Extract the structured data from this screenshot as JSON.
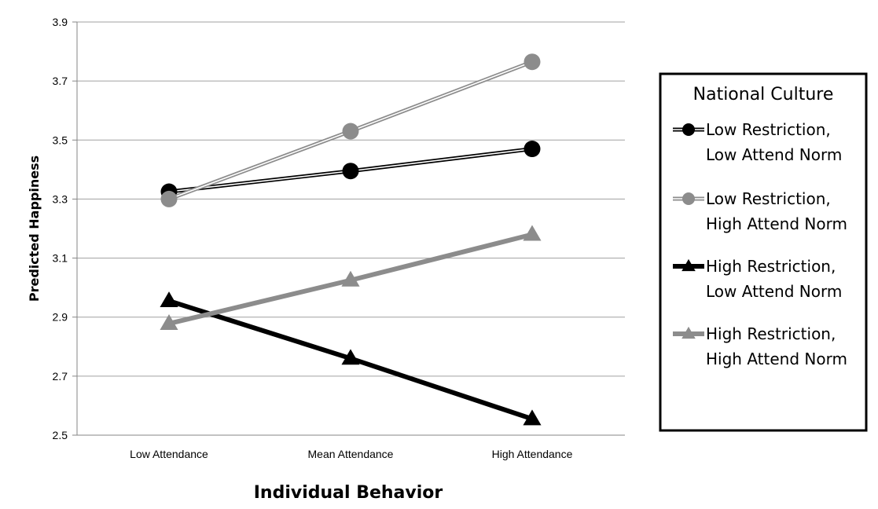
{
  "chart_data": {
    "type": "line",
    "xlabel": "Individual Behavior",
    "ylabel": "Predicted Happiness",
    "categories": [
      "Low Attendance",
      "Mean Attendance",
      "High Attendance"
    ],
    "ylim": [
      2.5,
      3.9
    ],
    "yticks": [
      "2.5",
      "2.7",
      "2.9",
      "3.1",
      "3.3",
      "3.5",
      "3.7",
      "3.9"
    ],
    "grid": true,
    "legend": {
      "title": "National Culture",
      "placement": "right"
    },
    "series": [
      {
        "key": "low-restriction-low-norm",
        "label_lines": [
          "Low Restriction,",
          "Low Attend Norm"
        ],
        "values": [
          3.325,
          3.395,
          3.47
        ],
        "color": "#000000",
        "marker": "circle",
        "line_style": "double"
      },
      {
        "key": "low-restriction-high-norm",
        "label_lines": [
          "Low Restriction,",
          "High Attend Norm"
        ],
        "values": [
          3.3,
          3.53,
          3.765
        ],
        "color": "#8c8c8c",
        "marker": "circle",
        "line_style": "double"
      },
      {
        "key": "high-restriction-low-norm",
        "label_lines": [
          "High Restriction,",
          "Low Attend Norm"
        ],
        "values": [
          2.955,
          2.76,
          2.555
        ],
        "color": "#000000",
        "marker": "triangle",
        "line_style": "thick"
      },
      {
        "key": "high-restriction-high-norm",
        "label_lines": [
          "High Restriction,",
          "High Attend Norm"
        ],
        "values": [
          2.878,
          3.025,
          3.18
        ],
        "color": "#8c8c8c",
        "marker": "triangle",
        "line_style": "thick"
      }
    ]
  }
}
